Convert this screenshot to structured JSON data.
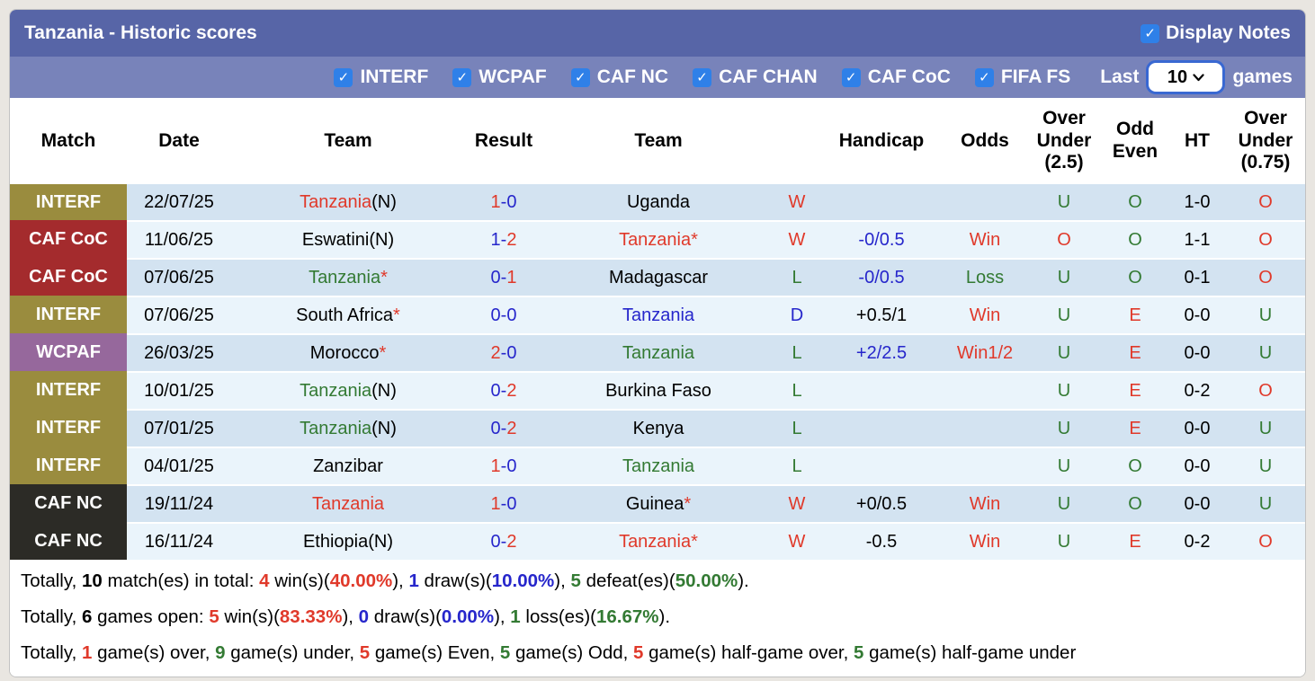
{
  "palette": {
    "red": "#e0392a",
    "green": "#337a33",
    "blue": "#2626cb",
    "black": "#000000",
    "bar_top": "#5765a7",
    "bar_filter": "#7883ba",
    "checkbox_blue": "#2f80e8",
    "row_odd": "#d3e3f1",
    "row_even": "#eaf4fb",
    "badges": {
      "INTERF": "#9a8c3e",
      "CAF CoC": "#a42b2d",
      "WCPAF": "#96689c",
      "CAF NC": "#2c2b26"
    }
  },
  "header": {
    "title": "Tanzania - Historic scores",
    "display_notes_label": "Display Notes",
    "display_notes_checked": true
  },
  "filters": {
    "items": [
      {
        "label": "INTERF",
        "checked": true
      },
      {
        "label": "WCPAF",
        "checked": true
      },
      {
        "label": "CAF NC",
        "checked": true
      },
      {
        "label": "CAF CHAN",
        "checked": true
      },
      {
        "label": "CAF CoC",
        "checked": true
      },
      {
        "label": "FIFA FS",
        "checked": true
      }
    ],
    "last_label": "Last",
    "last_value": "10",
    "games_label": "games"
  },
  "table": {
    "columns": [
      "Match",
      "Date",
      "Team",
      "Result",
      "Team",
      "",
      "Handicap",
      "Odds",
      "Over\nUnder\n(2.5)",
      "Odd\nEven",
      "HT",
      "Over\nUnder\n(0.75)"
    ],
    "rows": [
      {
        "match": "INTERF",
        "date": "22/07/25",
        "home": [
          {
            "t": "Tanzania",
            "c": "red"
          },
          {
            "t": "(N)"
          }
        ],
        "result": [
          {
            "t": "1",
            "c": "red"
          },
          {
            "t": "-",
            "c": "blue"
          },
          {
            "t": "0",
            "c": "blue"
          }
        ],
        "away": [
          {
            "t": "Uganda"
          }
        ],
        "wdl": {
          "t": "W",
          "c": "red"
        },
        "handicap": null,
        "odds": null,
        "ou25": {
          "t": "U",
          "c": "green"
        },
        "oddeven": {
          "t": "O",
          "c": "green"
        },
        "ht": "1-0",
        "ou075": {
          "t": "O",
          "c": "red"
        }
      },
      {
        "match": "CAF CoC",
        "date": "11/06/25",
        "home": [
          {
            "t": "Eswatini(N)"
          }
        ],
        "result": [
          {
            "t": "1",
            "c": "blue"
          },
          {
            "t": "-",
            "c": "blue"
          },
          {
            "t": "2",
            "c": "red"
          }
        ],
        "away": [
          {
            "t": "Tanzania",
            "c": "red"
          },
          {
            "t": "*",
            "c": "red"
          }
        ],
        "wdl": {
          "t": "W",
          "c": "red"
        },
        "handicap": {
          "t": "-0/0.5",
          "c": "blue"
        },
        "odds": {
          "t": "Win",
          "c": "red"
        },
        "ou25": {
          "t": "O",
          "c": "red"
        },
        "oddeven": {
          "t": "O",
          "c": "green"
        },
        "ht": "1-1",
        "ou075": {
          "t": "O",
          "c": "red"
        }
      },
      {
        "match": "CAF CoC",
        "date": "07/06/25",
        "home": [
          {
            "t": "Tanzania",
            "c": "green"
          },
          {
            "t": "*",
            "c": "red"
          }
        ],
        "result": [
          {
            "t": "0",
            "c": "blue"
          },
          {
            "t": "-",
            "c": "blue"
          },
          {
            "t": "1",
            "c": "red"
          }
        ],
        "away": [
          {
            "t": "Madagascar"
          }
        ],
        "wdl": {
          "t": "L",
          "c": "green"
        },
        "handicap": {
          "t": "-0/0.5",
          "c": "blue"
        },
        "odds": {
          "t": "Loss",
          "c": "green"
        },
        "ou25": {
          "t": "U",
          "c": "green"
        },
        "oddeven": {
          "t": "O",
          "c": "green"
        },
        "ht": "0-1",
        "ou075": {
          "t": "O",
          "c": "red"
        }
      },
      {
        "match": "INTERF",
        "date": "07/06/25",
        "home": [
          {
            "t": "South Africa"
          },
          {
            "t": "*",
            "c": "red"
          }
        ],
        "result": [
          {
            "t": "0",
            "c": "blue"
          },
          {
            "t": "-",
            "c": "blue"
          },
          {
            "t": "0",
            "c": "blue"
          }
        ],
        "away": [
          {
            "t": "Tanzania",
            "c": "blue"
          }
        ],
        "wdl": {
          "t": "D",
          "c": "blue"
        },
        "handicap": {
          "t": "+0.5/1"
        },
        "odds": {
          "t": "Win",
          "c": "red"
        },
        "ou25": {
          "t": "U",
          "c": "green"
        },
        "oddeven": {
          "t": "E",
          "c": "red"
        },
        "ht": "0-0",
        "ou075": {
          "t": "U",
          "c": "green"
        }
      },
      {
        "match": "WCPAF",
        "date": "26/03/25",
        "home": [
          {
            "t": "Morocco"
          },
          {
            "t": "*",
            "c": "red"
          }
        ],
        "result": [
          {
            "t": "2",
            "c": "red"
          },
          {
            "t": "-",
            "c": "blue"
          },
          {
            "t": "0",
            "c": "blue"
          }
        ],
        "away": [
          {
            "t": "Tanzania",
            "c": "green"
          }
        ],
        "wdl": {
          "t": "L",
          "c": "green"
        },
        "handicap": {
          "t": "+2/2.5",
          "c": "blue"
        },
        "odds": {
          "t": "Win1/2",
          "c": "red"
        },
        "ou25": {
          "t": "U",
          "c": "green"
        },
        "oddeven": {
          "t": "E",
          "c": "red"
        },
        "ht": "0-0",
        "ou075": {
          "t": "U",
          "c": "green"
        }
      },
      {
        "match": "INTERF",
        "date": "10/01/25",
        "home": [
          {
            "t": "Tanzania",
            "c": "green"
          },
          {
            "t": "(N)"
          }
        ],
        "result": [
          {
            "t": "0",
            "c": "blue"
          },
          {
            "t": "-",
            "c": "blue"
          },
          {
            "t": "2",
            "c": "red"
          }
        ],
        "away": [
          {
            "t": "Burkina Faso"
          }
        ],
        "wdl": {
          "t": "L",
          "c": "green"
        },
        "handicap": null,
        "odds": null,
        "ou25": {
          "t": "U",
          "c": "green"
        },
        "oddeven": {
          "t": "E",
          "c": "red"
        },
        "ht": "0-2",
        "ou075": {
          "t": "O",
          "c": "red"
        }
      },
      {
        "match": "INTERF",
        "date": "07/01/25",
        "home": [
          {
            "t": "Tanzania",
            "c": "green"
          },
          {
            "t": "(N)"
          }
        ],
        "result": [
          {
            "t": "0",
            "c": "blue"
          },
          {
            "t": "-",
            "c": "blue"
          },
          {
            "t": "2",
            "c": "red"
          }
        ],
        "away": [
          {
            "t": "Kenya"
          }
        ],
        "wdl": {
          "t": "L",
          "c": "green"
        },
        "handicap": null,
        "odds": null,
        "ou25": {
          "t": "U",
          "c": "green"
        },
        "oddeven": {
          "t": "E",
          "c": "red"
        },
        "ht": "0-0",
        "ou075": {
          "t": "U",
          "c": "green"
        }
      },
      {
        "match": "INTERF",
        "date": "04/01/25",
        "home": [
          {
            "t": "Zanzibar"
          }
        ],
        "result": [
          {
            "t": "1",
            "c": "red"
          },
          {
            "t": "-",
            "c": "blue"
          },
          {
            "t": "0",
            "c": "blue"
          }
        ],
        "away": [
          {
            "t": "Tanzania",
            "c": "green"
          }
        ],
        "wdl": {
          "t": "L",
          "c": "green"
        },
        "handicap": null,
        "odds": null,
        "ou25": {
          "t": "U",
          "c": "green"
        },
        "oddeven": {
          "t": "O",
          "c": "green"
        },
        "ht": "0-0",
        "ou075": {
          "t": "U",
          "c": "green"
        }
      },
      {
        "match": "CAF NC",
        "date": "19/11/24",
        "home": [
          {
            "t": "Tanzania",
            "c": "red"
          }
        ],
        "result": [
          {
            "t": "1",
            "c": "red"
          },
          {
            "t": "-",
            "c": "blue"
          },
          {
            "t": "0",
            "c": "blue"
          }
        ],
        "away": [
          {
            "t": "Guinea"
          },
          {
            "t": "*",
            "c": "red"
          }
        ],
        "wdl": {
          "t": "W",
          "c": "red"
        },
        "handicap": {
          "t": "+0/0.5"
        },
        "odds": {
          "t": "Win",
          "c": "red"
        },
        "ou25": {
          "t": "U",
          "c": "green"
        },
        "oddeven": {
          "t": "O",
          "c": "green"
        },
        "ht": "0-0",
        "ou075": {
          "t": "U",
          "c": "green"
        }
      },
      {
        "match": "CAF NC",
        "date": "16/11/24",
        "home": [
          {
            "t": "Ethiopia(N)"
          }
        ],
        "result": [
          {
            "t": "0",
            "c": "blue"
          },
          {
            "t": "-",
            "c": "blue"
          },
          {
            "t": "2",
            "c": "red"
          }
        ],
        "away": [
          {
            "t": "Tanzania",
            "c": "red"
          },
          {
            "t": "*",
            "c": "red"
          }
        ],
        "wdl": {
          "t": "W",
          "c": "red"
        },
        "handicap": {
          "t": "-0.5"
        },
        "odds": {
          "t": "Win",
          "c": "red"
        },
        "ou25": {
          "t": "U",
          "c": "green"
        },
        "oddeven": {
          "t": "E",
          "c": "red"
        },
        "ht": "0-2",
        "ou075": {
          "t": "O",
          "c": "red"
        }
      }
    ]
  },
  "footer": {
    "lines": [
      [
        {
          "t": "Totally, "
        },
        {
          "t": "10",
          "b": 1
        },
        {
          "t": " match(es) in total: "
        },
        {
          "t": "4",
          "c": "red",
          "b": 1
        },
        {
          "t": " win(s)("
        },
        {
          "t": "40.00%",
          "c": "red",
          "b": 1
        },
        {
          "t": "), "
        },
        {
          "t": "1",
          "c": "blue",
          "b": 1
        },
        {
          "t": " draw(s)("
        },
        {
          "t": "10.00%",
          "c": "blue",
          "b": 1
        },
        {
          "t": "), "
        },
        {
          "t": "5",
          "c": "green",
          "b": 1
        },
        {
          "t": " defeat(es)("
        },
        {
          "t": "50.00%",
          "c": "green",
          "b": 1
        },
        {
          "t": ")."
        }
      ],
      [
        {
          "t": "Totally, "
        },
        {
          "t": "6",
          "b": 1
        },
        {
          "t": " games open: "
        },
        {
          "t": "5",
          "c": "red",
          "b": 1
        },
        {
          "t": " win(s)("
        },
        {
          "t": "83.33%",
          "c": "red",
          "b": 1
        },
        {
          "t": "), "
        },
        {
          "t": "0",
          "c": "blue",
          "b": 1
        },
        {
          "t": " draw(s)("
        },
        {
          "t": "0.00%",
          "c": "blue",
          "b": 1
        },
        {
          "t": "), "
        },
        {
          "t": "1",
          "c": "green",
          "b": 1
        },
        {
          "t": " loss(es)("
        },
        {
          "t": "16.67%",
          "c": "green",
          "b": 1
        },
        {
          "t": ")."
        }
      ],
      [
        {
          "t": "Totally, "
        },
        {
          "t": "1",
          "c": "red",
          "b": 1
        },
        {
          "t": " game(s) over, "
        },
        {
          "t": "9",
          "c": "green",
          "b": 1
        },
        {
          "t": " game(s) under, "
        },
        {
          "t": "5",
          "c": "red",
          "b": 1
        },
        {
          "t": " game(s) Even, "
        },
        {
          "t": "5",
          "c": "green",
          "b": 1
        },
        {
          "t": " game(s) Odd, "
        },
        {
          "t": "5",
          "c": "red",
          "b": 1
        },
        {
          "t": " game(s) half-game over, "
        },
        {
          "t": "5",
          "c": "green",
          "b": 1
        },
        {
          "t": " game(s) half-game under"
        }
      ]
    ]
  }
}
